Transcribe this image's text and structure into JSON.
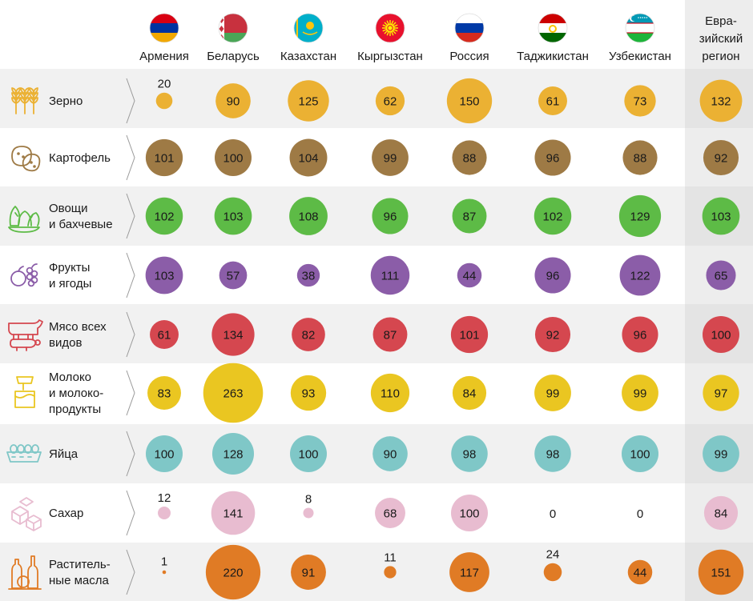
{
  "chart_data": {
    "type": "table",
    "title": "",
    "countries": [
      "Армения",
      "Беларусь",
      "Казахстан",
      "Кыргызстан",
      "Россия",
      "Таджикистан",
      "Узбекистан"
    ],
    "region_header": [
      "Евра-",
      "зийский",
      "регион"
    ],
    "categories": [
      {
        "name": "Зерно",
        "label_lines": [
          "Зерно"
        ],
        "icon": "wheat-icon",
        "color": "#EBB133",
        "values": [
          20,
          90,
          125,
          62,
          150,
          61,
          73
        ],
        "region": 132
      },
      {
        "name": "Картофель",
        "label_lines": [
          "Картофель"
        ],
        "icon": "potato-icon",
        "color": "#9E7A45",
        "values": [
          101,
          100,
          104,
          99,
          88,
          96,
          88
        ],
        "region": 92
      },
      {
        "name": "Овощи и бахчевые",
        "label_lines": [
          "Овощи",
          "и бахчевые"
        ],
        "icon": "vegetables-icon",
        "color": "#5DBB46",
        "values": [
          102,
          103,
          108,
          96,
          87,
          102,
          129
        ],
        "region": 103
      },
      {
        "name": "Фрукты и ягоды",
        "label_lines": [
          "Фрукты",
          "и ягоды"
        ],
        "icon": "fruit-icon",
        "color": "#8B5DA8",
        "values": [
          103,
          57,
          38,
          111,
          44,
          96,
          122
        ],
        "region": 65
      },
      {
        "name": "Мясо всех видов",
        "label_lines": [
          "Мясо всех",
          "видов"
        ],
        "icon": "livestock-icon",
        "color": "#D5474F",
        "values": [
          61,
          134,
          82,
          87,
          101,
          92,
          96
        ],
        "region": 100
      },
      {
        "name": "Молоко и молокопродукты",
        "label_lines": [
          "Молоко",
          "и молоко-",
          "продукты"
        ],
        "icon": "milk-icon",
        "color": "#EAC621",
        "values": [
          83,
          263,
          93,
          110,
          84,
          99,
          99
        ],
        "region": 97
      },
      {
        "name": "Яйца",
        "label_lines": [
          "Яйца"
        ],
        "icon": "eggs-icon",
        "color": "#7FC7C7",
        "values": [
          100,
          128,
          100,
          90,
          98,
          98,
          100
        ],
        "region": 99
      },
      {
        "name": "Сахар",
        "label_lines": [
          "Сахар"
        ],
        "icon": "sugar-icon",
        "color": "#E8BCD0",
        "values": [
          12,
          141,
          8,
          68,
          100,
          0,
          0
        ],
        "region": 84
      },
      {
        "name": "Растительные масла",
        "label_lines": [
          "Раститель-",
          "ные масла"
        ],
        "icon": "oil-icon",
        "color": "#E07B25",
        "values": [
          1,
          220,
          91,
          11,
          117,
          24,
          44
        ],
        "region": 151
      }
    ],
    "flags": [
      {
        "country": "Армения",
        "stripes": [
          "#D90012",
          "#0033A0",
          "#F2A800"
        ],
        "orientation": "h"
      },
      {
        "country": "Беларусь",
        "stripes": [
          "#C8313E",
          "#C8313E",
          "#4AA657"
        ],
        "orientation": "h",
        "ornament": "#C8313E"
      },
      {
        "country": "Казахстан",
        "solid": "#00AFCA",
        "emblem": "#FEC50C"
      },
      {
        "country": "Кыргызстан",
        "solid": "#E8112D",
        "emblem": "#FFEF00"
      },
      {
        "country": "Россия",
        "stripes": [
          "#FFFFFF",
          "#0039A6",
          "#D52B1E"
        ],
        "orientation": "h"
      },
      {
        "country": "Таджикистан",
        "stripes": [
          "#CC0000",
          "#FFFFFF",
          "#006600"
        ],
        "orientation": "h",
        "emblem": "#F8C300"
      },
      {
        "country": "Узбекистан",
        "stripes": [
          "#0099B5",
          "#FFFFFF",
          "#1EB53A"
        ],
        "orientation": "h",
        "emblem": "#FFFFFF"
      }
    ]
  }
}
